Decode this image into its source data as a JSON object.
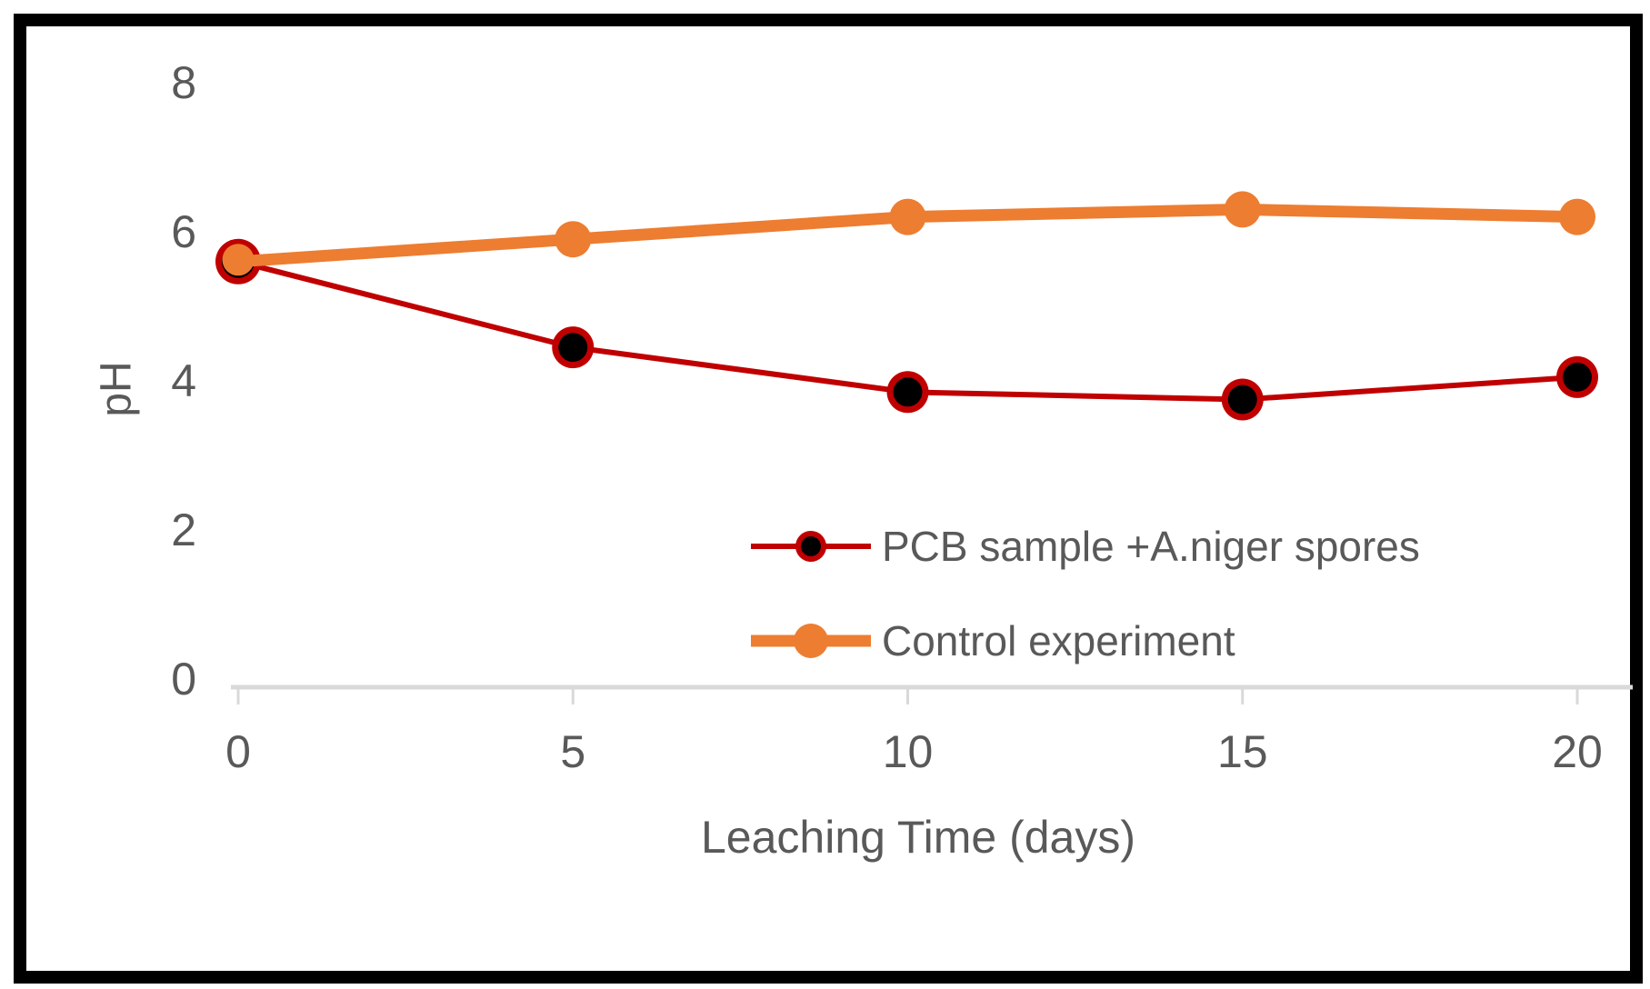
{
  "chart_data": {
    "type": "line",
    "title": "",
    "xlabel": "Leaching Time (days)",
    "ylabel": "pH",
    "x": [
      0,
      5,
      10,
      15,
      20
    ],
    "xtick_labels": [
      "0",
      "5",
      "10",
      "15",
      "20"
    ],
    "ytick_values": [
      0,
      2,
      4,
      6,
      8
    ],
    "ytick_labels": [
      "0",
      "2",
      "4",
      "6",
      "8"
    ],
    "xlim": [
      0,
      20.8
    ],
    "ylim": [
      0,
      8
    ],
    "grid": false,
    "legend_position": "inside-lower-right",
    "series": [
      {
        "name": "PCB sample +A.niger spores",
        "values": [
          5.6,
          4.45,
          3.85,
          3.75,
          4.05
        ],
        "color": "#C00000",
        "marker": "circle",
        "marker_fill": "#000000",
        "marker_ring": "#C00000",
        "line_width": 6
      },
      {
        "name": "Control experiment",
        "values": [
          5.6,
          5.9,
          6.2,
          6.3,
          6.2
        ],
        "color": "#ED7D31",
        "marker": "circle",
        "marker_fill": "#ED7D31",
        "marker_ring": "#ED7D31",
        "line_width": 13
      }
    ]
  },
  "colors": {
    "axis_line": "#D9D9D9",
    "tick_text": "#595959",
    "frame": "#000000",
    "background": "#FFFFFF"
  }
}
